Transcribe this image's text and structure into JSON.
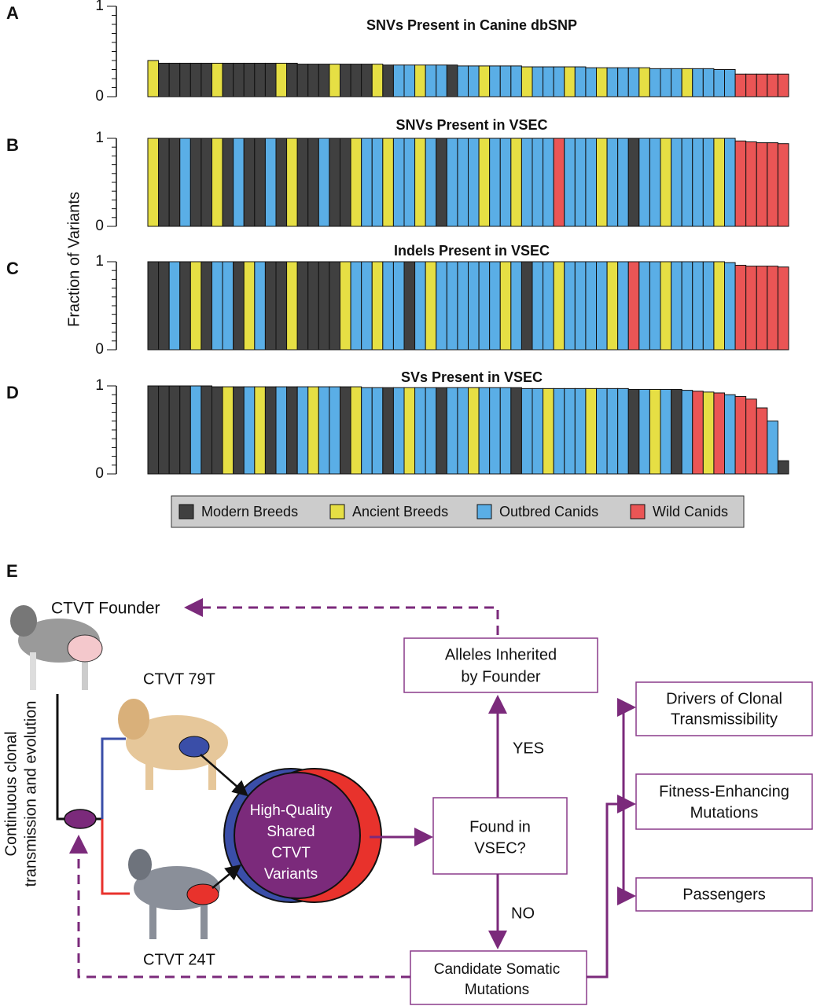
{
  "chart_data": [
    {
      "type": "bar",
      "panel": "A",
      "title": "SNVs Present in Canine dbSNP",
      "ylim": [
        0,
        1
      ],
      "yticks": [
        0,
        1
      ],
      "values": [
        0.4,
        0.37,
        0.37,
        0.37,
        0.37,
        0.37,
        0.37,
        0.37,
        0.37,
        0.37,
        0.37,
        0.37,
        0.37,
        0.37,
        0.36,
        0.36,
        0.36,
        0.36,
        0.36,
        0.36,
        0.36,
        0.36,
        0.35,
        0.35,
        0.35,
        0.35,
        0.35,
        0.35,
        0.35,
        0.34,
        0.34,
        0.34,
        0.34,
        0.34,
        0.34,
        0.33,
        0.33,
        0.33,
        0.33,
        0.33,
        0.33,
        0.32,
        0.32,
        0.32,
        0.32,
        0.32,
        0.32,
        0.31,
        0.31,
        0.31,
        0.31,
        0.31,
        0.31,
        0.3,
        0.3,
        0.25,
        0.25,
        0.25,
        0.25,
        0.25
      ],
      "bar_groups": [
        1,
        0,
        0,
        0,
        0,
        0,
        1,
        0,
        0,
        0,
        0,
        0,
        1,
        0,
        0,
        0,
        0,
        1,
        0,
        0,
        0,
        1,
        0,
        2,
        2,
        1,
        2,
        2,
        0,
        2,
        2,
        1,
        2,
        2,
        2,
        1,
        2,
        2,
        2,
        1,
        2,
        2,
        1,
        2,
        2,
        2,
        1,
        2,
        2,
        2,
        1,
        2,
        2,
        2,
        2,
        3,
        3,
        3,
        3,
        3
      ]
    },
    {
      "type": "bar",
      "panel": "B",
      "title": "SNVs Present in VSEC",
      "ylim": [
        0,
        1
      ],
      "yticks": [
        0,
        1
      ],
      "values": [
        1,
        1,
        1,
        1,
        1,
        1,
        1,
        1,
        1,
        1,
        1,
        1,
        1,
        1,
        1,
        1,
        1,
        1,
        1,
        1,
        1,
        1,
        1,
        1,
        1,
        1,
        1,
        1,
        1,
        1,
        1,
        1,
        1,
        1,
        1,
        1,
        1,
        1,
        1,
        1,
        1,
        1,
        1,
        1,
        1,
        1,
        1,
        1,
        1,
        1,
        1,
        1,
        1,
        1,
        1,
        0.97,
        0.96,
        0.95,
        0.95,
        0.94
      ],
      "bar_groups": [
        1,
        0,
        0,
        2,
        0,
        0,
        1,
        0,
        2,
        0,
        0,
        2,
        0,
        1,
        0,
        0,
        2,
        0,
        0,
        1,
        2,
        2,
        1,
        2,
        2,
        1,
        2,
        0,
        2,
        2,
        2,
        1,
        2,
        2,
        1,
        2,
        2,
        2,
        3,
        2,
        2,
        2,
        1,
        2,
        2,
        0,
        2,
        2,
        1,
        2,
        2,
        2,
        2,
        1,
        2,
        3,
        3,
        3,
        3,
        3
      ]
    },
    {
      "type": "bar",
      "panel": "C",
      "title": "Indels Present in VSEC",
      "ylim": [
        0,
        1
      ],
      "yticks": [
        0,
        1
      ],
      "values": [
        1,
        1,
        1,
        1,
        1,
        1,
        1,
        1,
        1,
        1,
        1,
        1,
        1,
        1,
        1,
        1,
        1,
        1,
        1,
        1,
        1,
        1,
        1,
        1,
        1,
        1,
        1,
        1,
        1,
        1,
        1,
        1,
        1,
        1,
        1,
        1,
        1,
        1,
        1,
        1,
        1,
        1,
        1,
        1,
        1,
        1,
        1,
        1,
        1,
        1,
        1,
        1,
        1,
        1,
        0.99,
        0.96,
        0.95,
        0.95,
        0.95,
        0.94
      ],
      "bar_groups": [
        0,
        0,
        2,
        0,
        1,
        0,
        2,
        2,
        0,
        1,
        2,
        0,
        0,
        1,
        0,
        0,
        0,
        0,
        1,
        2,
        2,
        1,
        2,
        2,
        0,
        2,
        1,
        2,
        2,
        2,
        2,
        2,
        2,
        1,
        2,
        0,
        2,
        2,
        1,
        2,
        2,
        2,
        2,
        1,
        2,
        3,
        2,
        2,
        1,
        2,
        2,
        2,
        2,
        1,
        2,
        3,
        3,
        3,
        3,
        3
      ]
    },
    {
      "type": "bar",
      "panel": "D",
      "title": "SVs Present in VSEC",
      "ylim": [
        0,
        1
      ],
      "yticks": [
        0,
        1
      ],
      "values": [
        1,
        1,
        1,
        1,
        1,
        1,
        0.99,
        0.99,
        0.99,
        0.99,
        0.99,
        0.99,
        0.99,
        0.99,
        0.99,
        0.99,
        0.99,
        0.99,
        0.99,
        0.99,
        0.98,
        0.98,
        0.98,
        0.98,
        0.98,
        0.98,
        0.98,
        0.98,
        0.98,
        0.98,
        0.98,
        0.98,
        0.98,
        0.98,
        0.98,
        0.97,
        0.97,
        0.97,
        0.97,
        0.97,
        0.97,
        0.97,
        0.97,
        0.97,
        0.97,
        0.96,
        0.96,
        0.96,
        0.96,
        0.96,
        0.95,
        0.94,
        0.93,
        0.92,
        0.9,
        0.88,
        0.85,
        0.75,
        0.6,
        0.15
      ],
      "bar_groups": [
        0,
        0,
        0,
        0,
        2,
        0,
        0,
        1,
        0,
        2,
        1,
        0,
        2,
        0,
        2,
        1,
        2,
        2,
        0,
        1,
        2,
        2,
        0,
        2,
        1,
        2,
        2,
        0,
        2,
        2,
        1,
        2,
        2,
        2,
        0,
        2,
        2,
        1,
        2,
        2,
        2,
        1,
        2,
        2,
        2,
        0,
        2,
        1,
        2,
        0,
        2,
        3,
        1,
        3,
        2,
        3,
        3,
        3,
        2,
        0
      ]
    }
  ],
  "shared_ylabel": "Fraction of Variants",
  "legend": [
    {
      "name": "Modern Breeds",
      "color": "#404040"
    },
    {
      "name": "Ancient Breeds",
      "color": "#e6df44"
    },
    {
      "name": "Outbred Canids",
      "color": "#5aaee6"
    },
    {
      "name": "Wild Canids",
      "color": "#ea5555"
    }
  ],
  "diagram": {
    "panel": "E",
    "founder": "CTVT Founder",
    "t79": "CTVT 79T",
    "t24": "CTVT 24T",
    "side_label": [
      "Continuous clonal",
      "transmission and evolution"
    ],
    "venn": [
      "High-Quality",
      "Shared",
      "CTVT",
      "Variants"
    ],
    "alleles": [
      "Alleles Inherited",
      "by Founder"
    ],
    "found": [
      "Found in",
      "VSEC?"
    ],
    "candidate": [
      "Candidate Somatic",
      "Mutations"
    ],
    "drivers": [
      "Drivers of Clonal",
      "Transmissibility"
    ],
    "fitness": [
      "Fitness-Enhancing",
      "Mutations"
    ],
    "passengers": "Passengers",
    "yes": "YES",
    "no": "NO"
  }
}
